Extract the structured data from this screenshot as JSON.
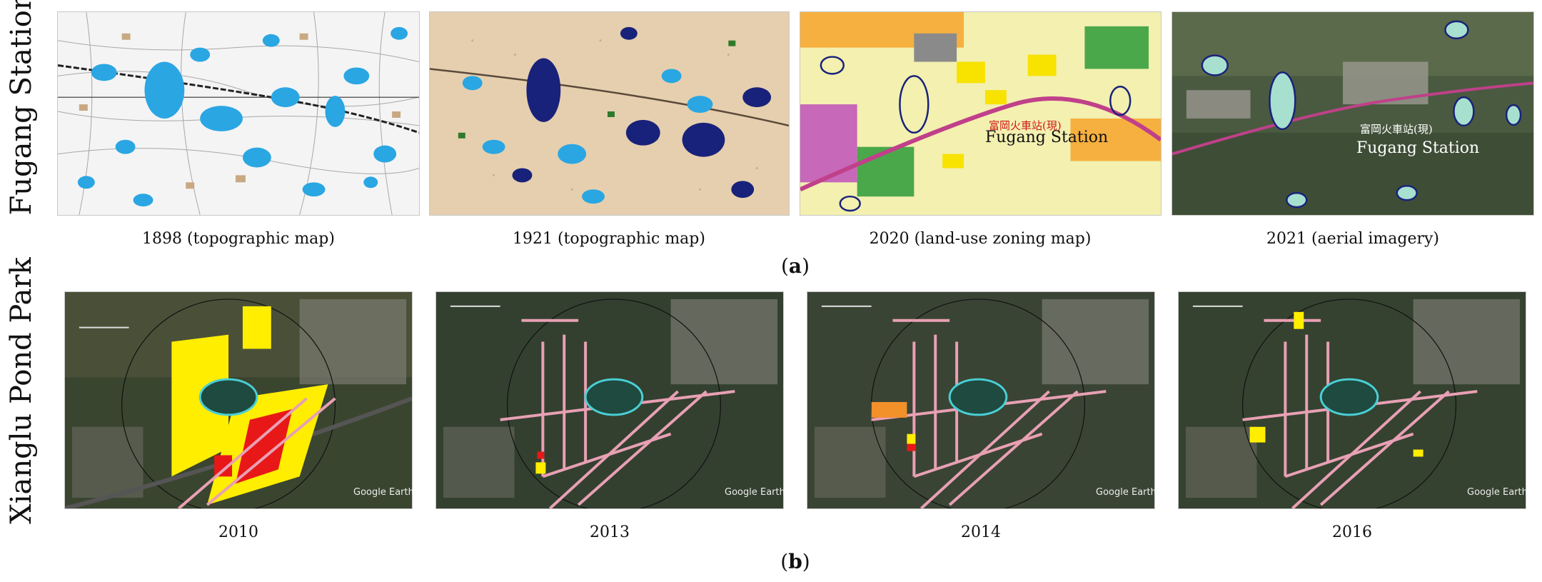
{
  "row_a": {
    "label": "Fugang Station",
    "panels": [
      {
        "caption": "1898 (topographic map)"
      },
      {
        "caption": "1921 (topographic map)"
      },
      {
        "caption": "2020 (land-use zoning map)",
        "overlay_zh": "富岡火車站(現)",
        "overlay_en": "Fugang Station"
      },
      {
        "caption": "2021 (aerial imagery)",
        "overlay_zh": "富岡火車站(現)",
        "overlay_en": "Fugang Station"
      }
    ],
    "sublabel_open": "(",
    "sublabel_letter": "a",
    "sublabel_close": ")"
  },
  "row_b": {
    "label": "Xianglu Pond Park",
    "panels": [
      {
        "caption": "2010",
        "watermark": "Google Earth"
      },
      {
        "caption": "2013",
        "watermark": "Google Earth"
      },
      {
        "caption": "2014",
        "watermark": "Google Earth"
      },
      {
        "caption": "2016",
        "watermark": "Google Earth"
      }
    ],
    "sublabel_open": "(",
    "sublabel_letter": "b",
    "sublabel_close": ")"
  },
  "colors": {
    "pond_blue": "#2aa6e3",
    "pond_dark": "#15206a",
    "park_outline": "#4ad0d6",
    "road_pink": "#e8a0b4",
    "zone_yellow": "#ffee00",
    "zone_red": "#e81818",
    "rail_pink": "#c0408a"
  }
}
